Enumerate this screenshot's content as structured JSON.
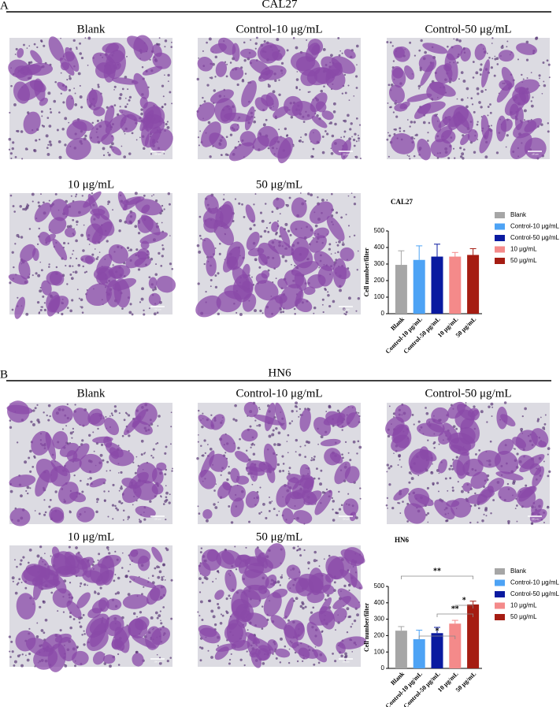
{
  "panels": [
    {
      "label": "A",
      "title": "CAL27",
      "images": [
        "Blank",
        "Control-10 μg/mL",
        "Control-50 μg/mL",
        "10 μg/mL",
        "50 μg/mL"
      ],
      "scale_bar": "100 μm"
    },
    {
      "label": "B",
      "title": "HN6",
      "images": [
        "Blank",
        "Control-10 μg/mL",
        "Control-50 μg/mL",
        "10 μg/mL",
        "50 μg/mL"
      ],
      "scale_bar": "100 μm"
    }
  ],
  "chart_data": [
    {
      "type": "bar",
      "title": "CAL27",
      "ylabel": "Cell number/filter",
      "categories": [
        "Blank",
        "Control-10 μg/mL",
        "Control-50 μg/mL",
        "10 μg/mL",
        "50 μg/mL"
      ],
      "values": [
        295,
        325,
        345,
        345,
        355
      ],
      "errors": [
        85,
        85,
        75,
        25,
        38
      ],
      "colors": [
        "#a6a6a6",
        "#4da3f5",
        "#0a1aa0",
        "#f48a8a",
        "#a51c12"
      ],
      "ylim": [
        0,
        500
      ],
      "yticks": [
        0,
        100,
        200,
        300,
        400,
        500
      ]
    },
    {
      "type": "bar",
      "title": "HN6",
      "ylabel": "Cell number/filter",
      "categories": [
        "Blank",
        "Control-10 μg/mL",
        "Control-50 μg/mL",
        "10 μg/mL",
        "50 μg/mL"
      ],
      "values": [
        230,
        178,
        215,
        273,
        390
      ],
      "errors": [
        25,
        55,
        35,
        20,
        20
      ],
      "colors": [
        "#a6a6a6",
        "#4da3f5",
        "#0a1aa0",
        "#f48a8a",
        "#a51c12"
      ],
      "ylim": [
        0,
        500
      ],
      "yticks": [
        0,
        100,
        200,
        300,
        400,
        500
      ],
      "annotations": [
        {
          "label": "**",
          "between": [
            "Blank",
            "50 μg/mL"
          ]
        },
        {
          "label": "*",
          "between": [
            "10 μg/mL",
            "50 μg/mL"
          ]
        },
        {
          "label": "**",
          "between": [
            "Control-50 μg/mL",
            "50 μg/mL"
          ]
        },
        {
          "label": "*",
          "between": [
            "Control-10 μg/mL",
            "10 μg/mL"
          ]
        }
      ]
    }
  ]
}
